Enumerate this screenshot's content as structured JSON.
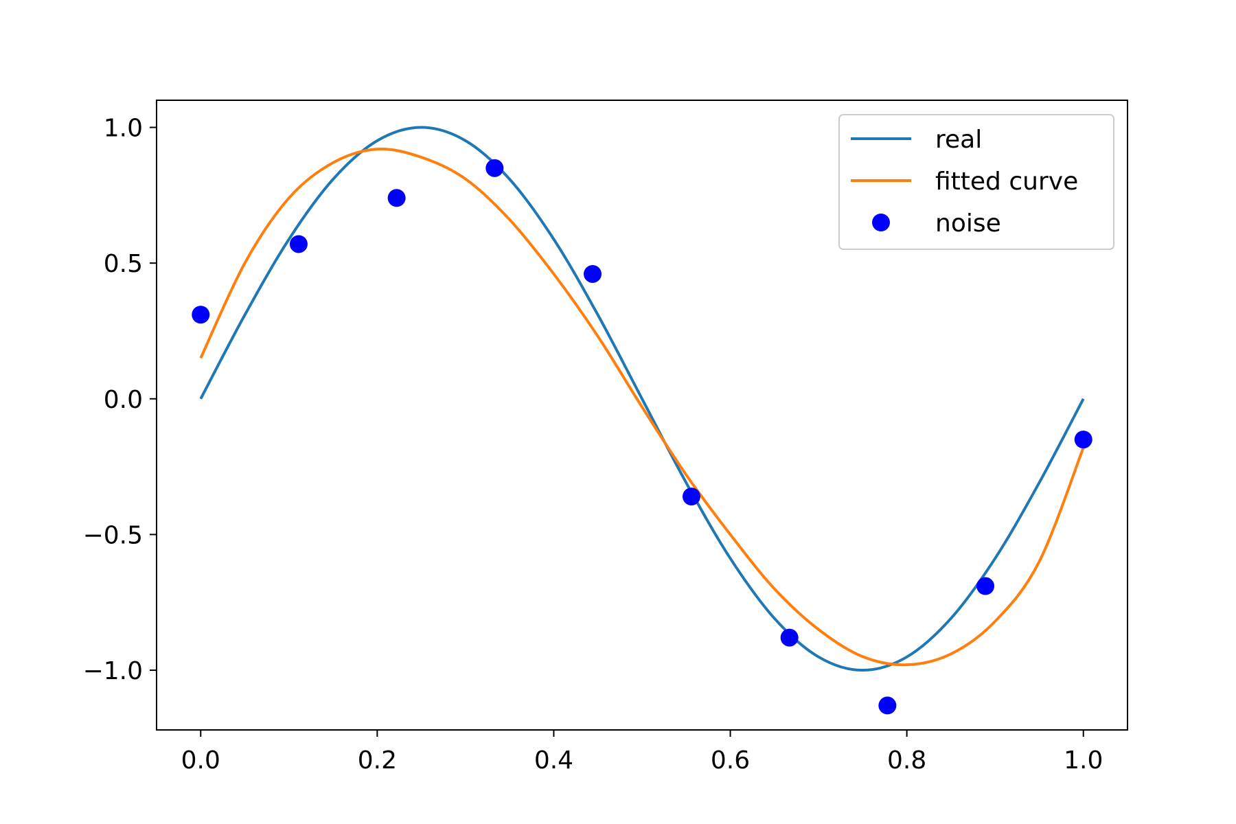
{
  "chart_data": {
    "type": "line",
    "title": "",
    "xlabel": "",
    "ylabel": "",
    "xlim": [
      -0.05,
      1.05
    ],
    "ylim": [
      -1.22,
      1.1
    ],
    "xticks": [
      0.0,
      0.2,
      0.4,
      0.6,
      0.8,
      1.0
    ],
    "xtick_labels": [
      "0.0",
      "0.2",
      "0.4",
      "0.6",
      "0.8",
      "1.0"
    ],
    "yticks": [
      1.0,
      0.5,
      0.0,
      -0.5,
      -1.0
    ],
    "ytick_labels": [
      "1.0",
      "0.5",
      "0.0",
      "−0.5",
      "−1.0"
    ],
    "grid": false,
    "legend_position": "top-right",
    "series": [
      {
        "name": "real",
        "kind": "line",
        "color": "#1f77b4",
        "x": [
          0.0,
          0.05,
          0.1,
          0.15,
          0.2,
          0.25,
          0.3,
          0.35,
          0.4,
          0.45,
          0.5,
          0.55,
          0.6,
          0.65,
          0.7,
          0.75,
          0.8,
          0.85,
          0.9,
          0.95,
          1.0
        ],
        "y": [
          0.0,
          0.309,
          0.588,
          0.809,
          0.951,
          1.0,
          0.951,
          0.809,
          0.588,
          0.309,
          0.0,
          -0.309,
          -0.588,
          -0.809,
          -0.951,
          -1.0,
          -0.951,
          -0.809,
          -0.588,
          -0.309,
          0.0
        ]
      },
      {
        "name": "fitted curve",
        "kind": "line",
        "color": "#ff7f0e",
        "x": [
          0.0,
          0.05,
          0.1,
          0.15,
          0.2,
          0.25,
          0.3,
          0.35,
          0.4,
          0.45,
          0.5,
          0.55,
          0.6,
          0.65,
          0.7,
          0.75,
          0.8,
          0.85,
          0.9,
          0.95,
          1.0
        ],
        "y": [
          0.15,
          0.5,
          0.74,
          0.87,
          0.92,
          0.89,
          0.81,
          0.66,
          0.46,
          0.23,
          -0.03,
          -0.28,
          -0.5,
          -0.7,
          -0.85,
          -0.95,
          -0.98,
          -0.94,
          -0.82,
          -0.6,
          -0.18
        ]
      },
      {
        "name": "noise",
        "kind": "scatter",
        "color": "#0000ff",
        "x": [
          0.0,
          0.111,
          0.222,
          0.333,
          0.444,
          0.556,
          0.667,
          0.778,
          0.889,
          1.0
        ],
        "y": [
          0.31,
          0.57,
          0.74,
          0.85,
          0.46,
          -0.36,
          -0.88,
          -1.13,
          -0.69,
          -0.15
        ]
      }
    ]
  }
}
